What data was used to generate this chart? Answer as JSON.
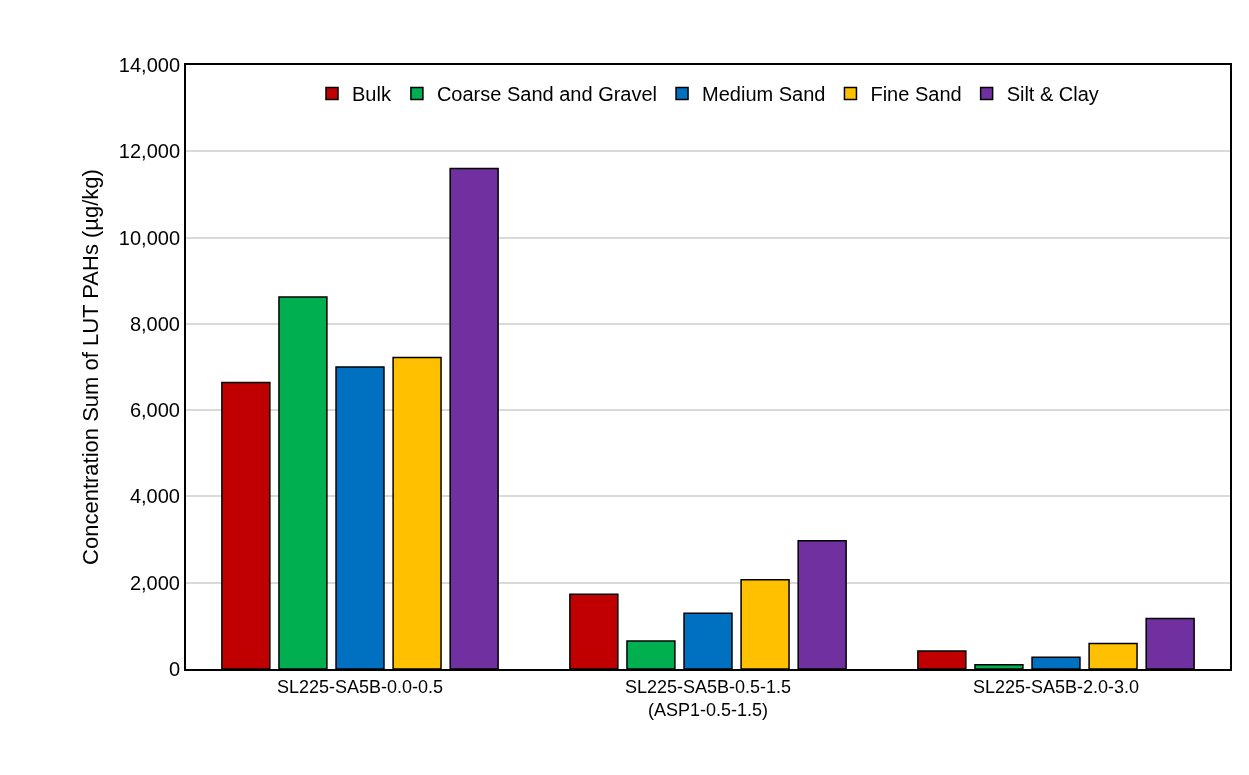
{
  "chart_data": {
    "type": "bar",
    "ylabel": "Concentration Sum of LUT PAHs (µg/kg)",
    "categories": [
      "SL225-SA5B-0.0-0.5",
      "SL225-SA5B-0.5-1.5\n(ASP1-0.5-1.5)",
      "SL225-SA5B-2.0-3.0"
    ],
    "series": [
      {
        "name": "Bulk",
        "color": "#c00000",
        "values": [
          6640,
          1730,
          420
        ]
      },
      {
        "name": "Coarse Sand and Gravel",
        "color": "#00b050",
        "values": [
          8620,
          650,
          100
        ]
      },
      {
        "name": "Medium Sand",
        "color": "#0070c0",
        "values": [
          7000,
          1290,
          270
        ]
      },
      {
        "name": "Fine Sand",
        "color": "#ffc000",
        "values": [
          7220,
          2070,
          590
        ]
      },
      {
        "name": "Silt & Clay",
        "color": "#7030a0",
        "values": [
          11600,
          2970,
          1170
        ]
      }
    ],
    "ylim": [
      0,
      14000
    ],
    "yticks": [
      {
        "value": 0,
        "label": "0"
      },
      {
        "value": 2000,
        "label": "2,000"
      },
      {
        "value": 4000,
        "label": "4,000"
      },
      {
        "value": 6000,
        "label": "6,000"
      },
      {
        "value": 8000,
        "label": "8,000"
      },
      {
        "value": 10000,
        "label": "10,000"
      },
      {
        "value": 12000,
        "label": "12,000"
      },
      {
        "value": 14000,
        "label": "14,000"
      }
    ],
    "grid": "y",
    "legend": "top"
  }
}
